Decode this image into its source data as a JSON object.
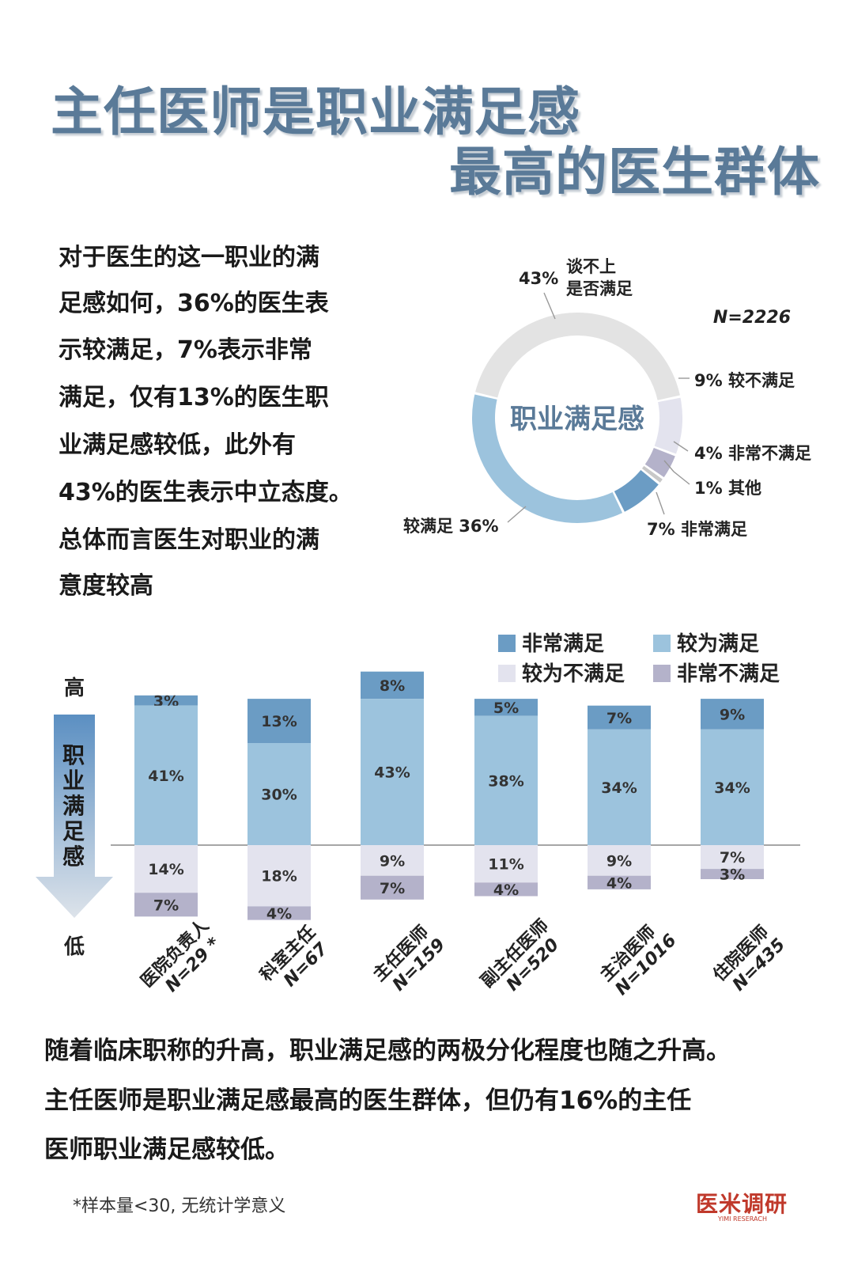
{
  "title": {
    "line1": "主任医师是职业满足感",
    "line2": "最高的医生群体"
  },
  "intro": [
    "对于医生的这一职业的满",
    "足感如何，36%的医生表",
    "示较满足，7%表示非常",
    "满足，仅有13%的医生职",
    "业满足感较低，此外有",
    "43%的医生表示中立态度。",
    "总体而言医生对职业的满",
    "意度较高"
  ],
  "summary": [
    "随着临床职称的升高，职业满足感的两极分化程度也随之升高。",
    "主任医师是职业满足感最高的医生群体，但仍有16%的主任",
    "医师职业满足感较低。"
  ],
  "footnote": "*样本量<30, 无统计学意义",
  "logo": {
    "name": "医米调研",
    "sub": "YIMI RESERACH"
  },
  "colors": {
    "very_satisfied": "#6b9cc4",
    "satisfied": "#9cc3dd",
    "dissatisfied": "#e3e3ee",
    "very_dissatisfied": "#b4b2ca",
    "neutral": "#e3e3e3",
    "other": "#c8c8c8",
    "title": "#5a7a98"
  },
  "chart_data": [
    {
      "type": "pie",
      "title": "职业满足感",
      "sample": "N=2226",
      "slices": [
        {
          "label": "谈不上是否满足",
          "label_lines": [
            "谈不上",
            "是否满足"
          ],
          "value": 43,
          "text": "43%"
        },
        {
          "label": "较不满足",
          "value": 9,
          "text": "9% 较不满足"
        },
        {
          "label": "非常不满足",
          "value": 4,
          "text": "4% 非常不满足"
        },
        {
          "label": "其他",
          "value": 1,
          "text": "1% 其他"
        },
        {
          "label": "非常满足",
          "value": 7,
          "text": "7% 非常满足"
        },
        {
          "label": "较满足",
          "value": 36,
          "text": "较满足 36%"
        }
      ]
    },
    {
      "type": "bar",
      "subtype": "diverging-stacked",
      "axis_label": "职业满足感",
      "axis_high": "高",
      "axis_low": "低",
      "legend": [
        "非常满足",
        "较为满足",
        "较为不满足",
        "非常不满足"
      ],
      "legend_placement": "top-right",
      "categories": [
        {
          "name": "医院负责人",
          "n": "N=29",
          "note": "*"
        },
        {
          "name": "科室主任",
          "n": "N=67"
        },
        {
          "name": "主任医师",
          "n": "N=159"
        },
        {
          "name": "副主任医师",
          "n": "N=520"
        },
        {
          "name": "主治医师",
          "n": "N=1016"
        },
        {
          "name": "住院医师",
          "n": "N=435"
        }
      ],
      "series": [
        {
          "name": "非常满足",
          "values": [
            3,
            13,
            8,
            5,
            7,
            9
          ]
        },
        {
          "name": "较为满足",
          "values": [
            41,
            30,
            43,
            38,
            34,
            34
          ]
        },
        {
          "name": "较为不满足",
          "values": [
            14,
            18,
            9,
            11,
            9,
            7
          ]
        },
        {
          "name": "非常不满足",
          "values": [
            7,
            4,
            7,
            4,
            4,
            3
          ]
        }
      ]
    }
  ]
}
